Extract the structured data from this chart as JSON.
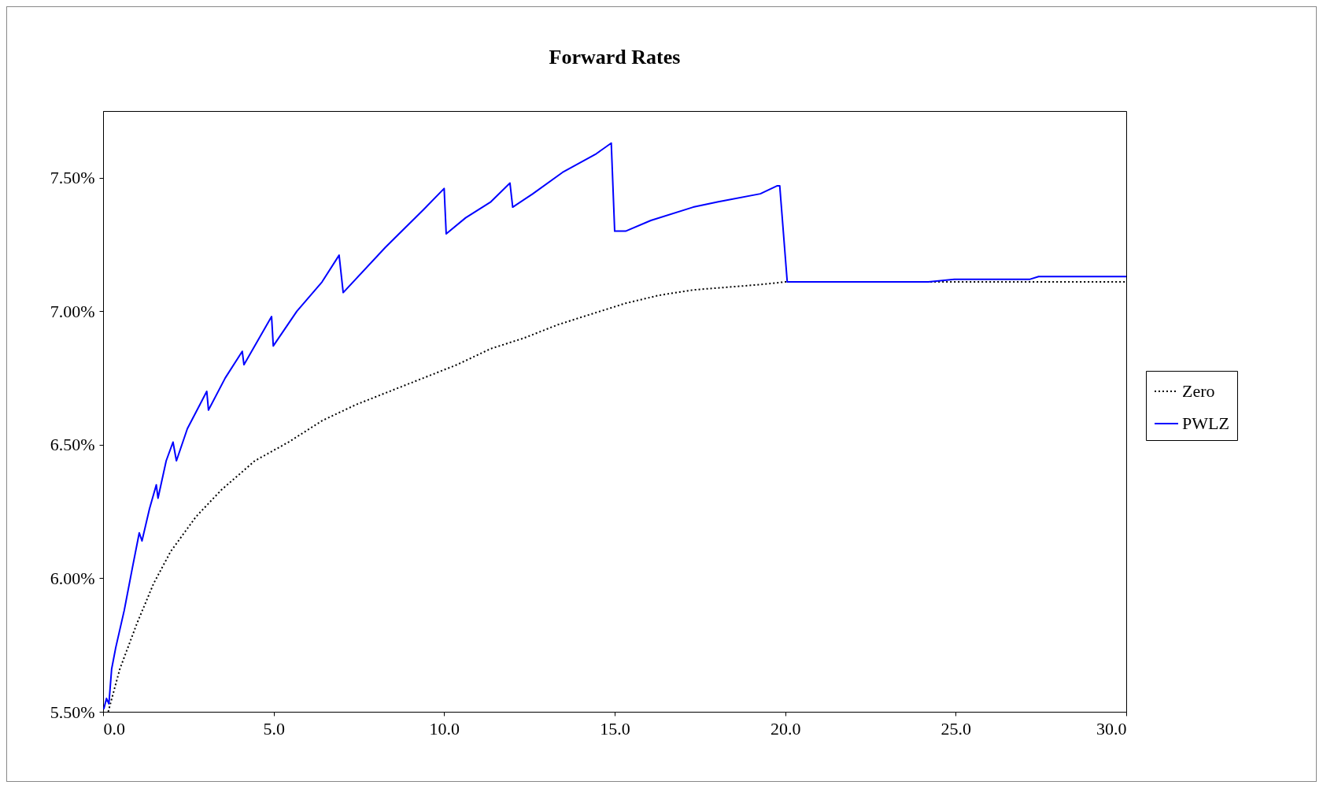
{
  "chart_data": {
    "type": "line",
    "title": "Forward Rates",
    "xlim": [
      0,
      30
    ],
    "xticks": [
      {
        "value": 0,
        "label": "0.0"
      },
      {
        "value": 5,
        "label": "5.0"
      },
      {
        "value": 10,
        "label": "10.0"
      },
      {
        "value": 15,
        "label": "15.0"
      },
      {
        "value": 20,
        "label": "20.0"
      },
      {
        "value": 25,
        "label": "25.0"
      },
      {
        "value": 30,
        "label": "30.0"
      }
    ],
    "ylim": [
      5.5,
      7.75
    ],
    "yticks": [
      {
        "value": 5.5,
        "label": "5.50%"
      },
      {
        "value": 6,
        "label": "6.00%"
      },
      {
        "value": 6.5,
        "label": "6.50%"
      },
      {
        "value": 7,
        "label": "7.00%"
      },
      {
        "value": 7.5,
        "label": "7.50%"
      }
    ],
    "grid": false,
    "legend": "right",
    "marker": "none",
    "series": [
      {
        "name": "Zero",
        "color": "#000000",
        "line_style": "dotted",
        "x": [
          0.15,
          0.49,
          0.99,
          1.48,
          1.98,
          2.72,
          3.46,
          4.45,
          5.44,
          6.42,
          7.41,
          8.4,
          9.39,
          10.38,
          11.37,
          12.35,
          13.34,
          14.33,
          15.32,
          16.31,
          17.3,
          18.29,
          19.27,
          20.0,
          30.0
        ],
        "values": [
          5.5,
          5.66,
          5.83,
          5.98,
          6.1,
          6.23,
          6.33,
          6.44,
          6.51,
          6.59,
          6.65,
          6.7,
          6.75,
          6.8,
          6.86,
          6.9,
          6.95,
          6.99,
          7.03,
          7.06,
          7.08,
          7.09,
          7.1,
          7.11,
          7.11
        ]
      },
      {
        "name": "PWLZ",
        "color": "#0000ff",
        "line_style": "solid",
        "x": [
          0.02,
          0.1,
          0.17,
          0.25,
          0.37,
          0.62,
          0.86,
          1.06,
          1.14,
          1.36,
          1.56,
          1.61,
          1.85,
          2.05,
          2.15,
          2.47,
          3.04,
          3.09,
          3.58,
          4.08,
          4.13,
          4.94,
          4.99,
          5.68,
          6.42,
          6.92,
          7.04,
          8.28,
          9.39,
          10.0,
          10.06,
          10.63,
          11.37,
          11.93,
          12.01,
          12.6,
          13.47,
          14.46,
          14.9,
          15.0,
          15.32,
          16.06,
          17.3,
          18.04,
          19.27,
          19.77,
          19.84,
          20.06,
          24.2,
          24.96,
          27.18,
          27.43,
          30.0
        ],
        "values": [
          5.51,
          5.55,
          5.53,
          5.66,
          5.74,
          5.88,
          6.04,
          6.17,
          6.14,
          6.26,
          6.35,
          6.3,
          6.44,
          6.51,
          6.44,
          6.56,
          6.7,
          6.63,
          6.75,
          6.85,
          6.8,
          6.98,
          6.87,
          7.0,
          7.11,
          7.21,
          7.07,
          7.24,
          7.38,
          7.46,
          7.29,
          7.35,
          7.41,
          7.48,
          7.39,
          7.44,
          7.52,
          7.59,
          7.63,
          7.3,
          7.3,
          7.34,
          7.39,
          7.41,
          7.44,
          7.47,
          7.47,
          7.11,
          7.11,
          7.12,
          7.12,
          7.13,
          7.13
        ]
      }
    ]
  }
}
